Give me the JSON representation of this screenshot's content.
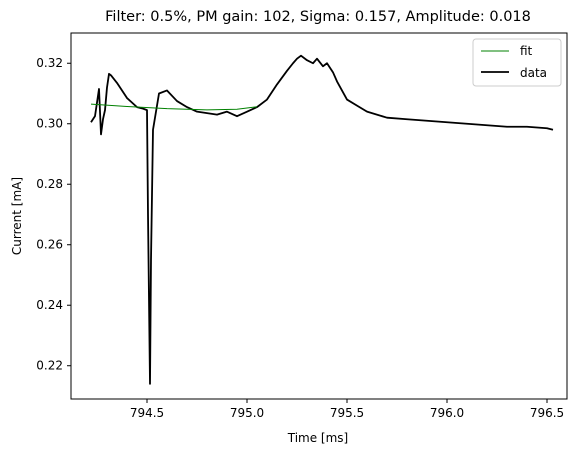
{
  "chart_data": {
    "type": "line",
    "title": "Filter: 0.5%, PM gain: 102, Sigma: 0.157, Amplitude: 0.018",
    "xlabel": "Time [ms]",
    "ylabel": "Current [mA]",
    "xlim": [
      794.12,
      796.6
    ],
    "ylim": [
      0.209,
      0.33
    ],
    "xticks": [
      794.5,
      795.0,
      795.5,
      796.0,
      796.5
    ],
    "xtick_labels": [
      "794.5",
      "795.0",
      "795.5",
      "796.0",
      "796.5"
    ],
    "yticks": [
      0.22,
      0.24,
      0.26,
      0.28,
      0.3,
      0.32
    ],
    "ytick_labels": [
      "0.22",
      "0.24",
      "0.26",
      "0.28",
      "0.30",
      "0.32"
    ],
    "grid": false,
    "legend": "top-right",
    "series": [
      {
        "name": "fit",
        "color": "#008000",
        "x": [
          794.22,
          794.4,
          794.6,
          794.8,
          794.95,
          795.05
        ],
        "y": [
          0.3065,
          0.3057,
          0.305,
          0.3046,
          0.3048,
          0.3056
        ]
      },
      {
        "name": "data",
        "color": "#000000",
        "x": [
          794.22,
          794.24,
          794.26,
          794.27,
          794.28,
          794.29,
          794.3,
          794.31,
          794.32,
          794.35,
          794.4,
          794.45,
          794.48,
          794.5,
          794.505,
          794.515,
          794.52,
          794.53,
          794.56,
          794.6,
          794.65,
          794.7,
          794.75,
          794.8,
          794.85,
          794.9,
          794.95,
          795.0,
          795.05,
          795.1,
          795.15,
          795.2,
          795.23,
          795.25,
          795.27,
          795.3,
          795.33,
          795.35,
          795.38,
          795.4,
          795.43,
          795.45,
          795.5,
          795.55,
          795.6,
          795.7,
          795.8,
          795.9,
          796.0,
          796.1,
          796.2,
          796.3,
          796.4,
          796.5,
          796.53
        ],
        "y": [
          0.3005,
          0.3025,
          0.3115,
          0.2965,
          0.3015,
          0.3045,
          0.312,
          0.3165,
          0.316,
          0.3135,
          0.3085,
          0.3055,
          0.305,
          0.3045,
          0.27,
          0.214,
          0.255,
          0.298,
          0.31,
          0.311,
          0.3075,
          0.3055,
          0.304,
          0.3035,
          0.303,
          0.304,
          0.3025,
          0.304,
          0.3055,
          0.308,
          0.313,
          0.3175,
          0.32,
          0.3215,
          0.3225,
          0.321,
          0.32,
          0.3215,
          0.319,
          0.32,
          0.317,
          0.314,
          0.308,
          0.306,
          0.304,
          0.302,
          0.3015,
          0.301,
          0.3005,
          0.3,
          0.2995,
          0.299,
          0.299,
          0.2985,
          0.298
        ]
      }
    ]
  }
}
